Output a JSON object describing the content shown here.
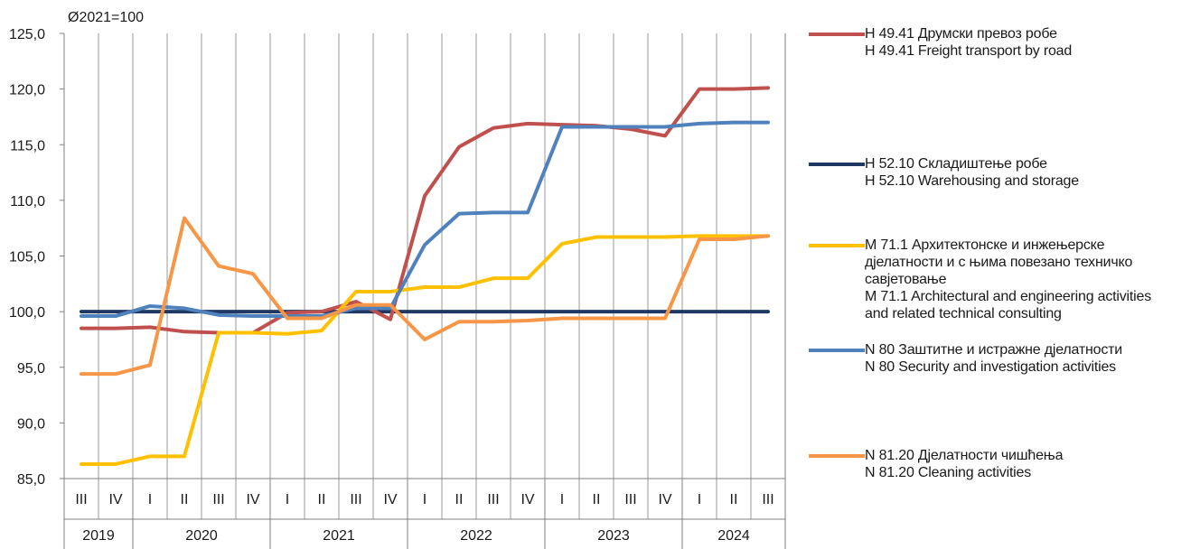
{
  "chart_data": {
    "type": "line",
    "unit_label": "Ø2021=100",
    "ylim": [
      85,
      125
    ],
    "yticks": [
      "85,0",
      "90,0",
      "95,0",
      "100,0",
      "105,0",
      "110,0",
      "115,0",
      "120,0",
      "125,0"
    ],
    "quarters": [
      "III",
      "IV",
      "I",
      "II",
      "III",
      "IV",
      "I",
      "II",
      "III",
      "IV",
      "I",
      "II",
      "III",
      "IV",
      "I",
      "II",
      "III",
      "IV",
      "I",
      "II",
      "III"
    ],
    "years": [
      {
        "label": "2019",
        "span": 2
      },
      {
        "label": "2020",
        "span": 4
      },
      {
        "label": "2021",
        "span": 4
      },
      {
        "label": "2022",
        "span": 4
      },
      {
        "label": "2023",
        "span": 4
      },
      {
        "label": "2024",
        "span": 3
      }
    ],
    "series": [
      {
        "name": "H 49.41 Друмски превоз робе\nH 49.41 Freight transport by road",
        "color": "#c0504d",
        "values": [
          98.5,
          98.5,
          98.6,
          98.2,
          98.1,
          98.1,
          99.9,
          100.0,
          100.9,
          99.3,
          110.4,
          114.8,
          116.5,
          116.9,
          116.8,
          116.7,
          116.4,
          115.8,
          120.0,
          120.0,
          120.1
        ]
      },
      {
        "name": "H 52.10 Складиштење робе\nH 52.10 Warehousing and storage",
        "color": "#1f3864",
        "values": [
          100.0,
          100.0,
          100.0,
          100.0,
          100.0,
          100.0,
          100.0,
          100.0,
          100.0,
          100.0,
          100.0,
          100.0,
          100.0,
          100.0,
          100.0,
          100.0,
          100.0,
          100.0,
          100.0,
          100.0,
          100.0
        ]
      },
      {
        "name": "M 71.1 Архитектонске и инжењерске\nдјелатности и с њима повезано техничко\nсавјетовање\nM 71.1 Architectural and engineering activities\nand related technical consulting",
        "color": "#ffc000",
        "values": [
          86.3,
          86.3,
          87.0,
          87.0,
          98.1,
          98.1,
          98.0,
          98.3,
          101.8,
          101.8,
          102.2,
          102.2,
          103.0,
          103.0,
          106.1,
          106.7,
          106.7,
          106.7,
          106.8,
          106.8,
          106.8
        ]
      },
      {
        "name": "N 80 Заштитне и истражне дјелатности\nN 80 Security and investigation activities",
        "color": "#4f81bd",
        "values": [
          99.6,
          99.6,
          100.5,
          100.3,
          99.7,
          99.6,
          99.6,
          99.6,
          100.3,
          100.3,
          106.0,
          108.8,
          108.9,
          108.9,
          116.6,
          116.6,
          116.6,
          116.6,
          116.9,
          117.0,
          117.0
        ]
      },
      {
        "name": "N 81.20 Дјелатности чишћења\nN 81.20 Cleaning activities",
        "color": "#f79646",
        "values": [
          94.4,
          94.4,
          95.2,
          108.4,
          104.1,
          103.4,
          99.4,
          99.4,
          100.6,
          100.6,
          97.5,
          99.1,
          99.1,
          99.2,
          99.4,
          99.4,
          99.4,
          99.4,
          106.5,
          106.5,
          106.8
        ]
      }
    ]
  }
}
